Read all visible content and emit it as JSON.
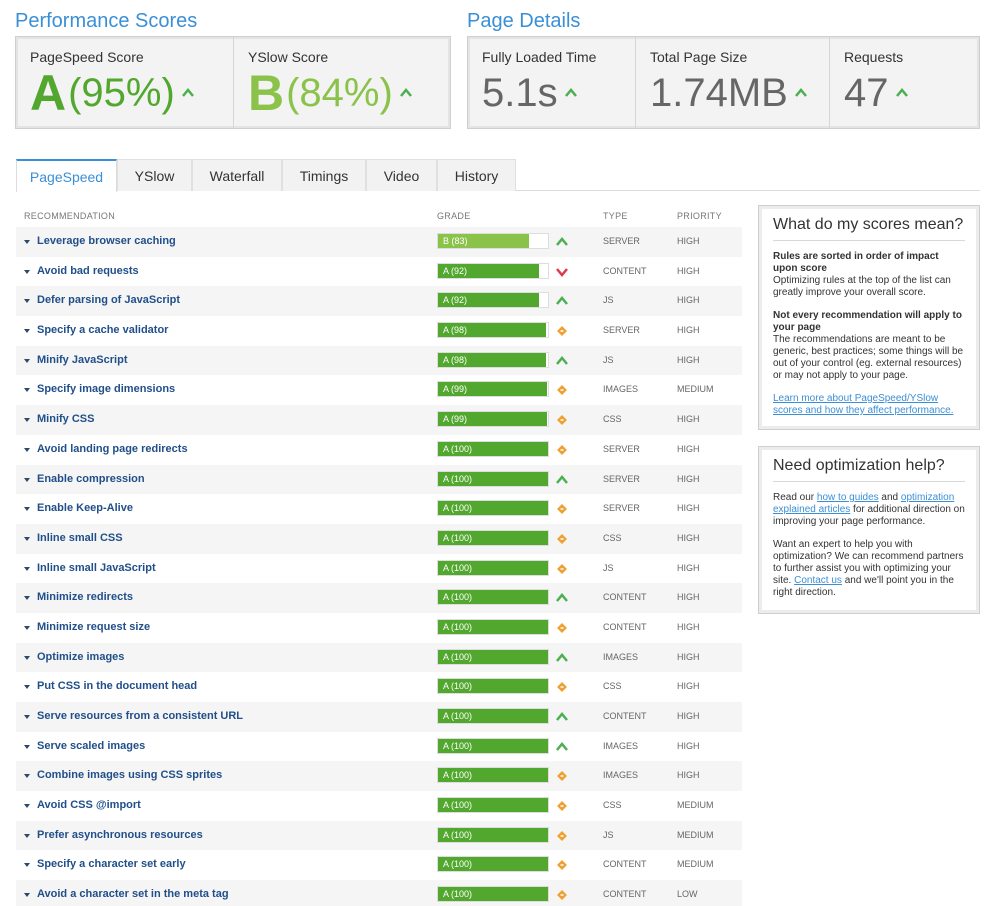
{
  "performance": {
    "title": "Performance Scores",
    "pagespeed": {
      "label": "PageSpeed Score",
      "letter": "A",
      "pct": "(95%)"
    },
    "yslow": {
      "label": "YSlow Score",
      "letter": "B",
      "pct": "(84%)"
    }
  },
  "details": {
    "title": "Page Details",
    "loaded": {
      "label": "Fully Loaded Time",
      "value": "5.1s"
    },
    "size": {
      "label": "Total Page Size",
      "value": "1.74MB"
    },
    "requests": {
      "label": "Requests",
      "value": "47"
    }
  },
  "tabs": [
    "PageSpeed",
    "YSlow",
    "Waterfall",
    "Timings",
    "Video",
    "History"
  ],
  "table": {
    "headers": {
      "recommendation": "RECOMMENDATION",
      "grade": "GRADE",
      "type": "TYPE",
      "priority": "PRIORITY"
    },
    "rows": [
      {
        "name": "Leverage browser caching",
        "grade": "B (83)",
        "score": 83,
        "trend": "up",
        "type": "SERVER",
        "priority": "HIGH"
      },
      {
        "name": "Avoid bad requests",
        "grade": "A (92)",
        "score": 92,
        "trend": "down",
        "type": "CONTENT",
        "priority": "HIGH"
      },
      {
        "name": "Defer parsing of JavaScript",
        "grade": "A (92)",
        "score": 92,
        "trend": "up",
        "type": "JS",
        "priority": "HIGH"
      },
      {
        "name": "Specify a cache validator",
        "grade": "A (98)",
        "score": 98,
        "trend": "same",
        "type": "SERVER",
        "priority": "HIGH"
      },
      {
        "name": "Minify JavaScript",
        "grade": "A (98)",
        "score": 98,
        "trend": "up",
        "type": "JS",
        "priority": "HIGH"
      },
      {
        "name": "Specify image dimensions",
        "grade": "A (99)",
        "score": 99,
        "trend": "same",
        "type": "IMAGES",
        "priority": "MEDIUM"
      },
      {
        "name": "Minify CSS",
        "grade": "A (99)",
        "score": 99,
        "trend": "same",
        "type": "CSS",
        "priority": "HIGH"
      },
      {
        "name": "Avoid landing page redirects",
        "grade": "A (100)",
        "score": 100,
        "trend": "same",
        "type": "SERVER",
        "priority": "HIGH"
      },
      {
        "name": "Enable compression",
        "grade": "A (100)",
        "score": 100,
        "trend": "up",
        "type": "SERVER",
        "priority": "HIGH"
      },
      {
        "name": "Enable Keep-Alive",
        "grade": "A (100)",
        "score": 100,
        "trend": "same",
        "type": "SERVER",
        "priority": "HIGH"
      },
      {
        "name": "Inline small CSS",
        "grade": "A (100)",
        "score": 100,
        "trend": "same",
        "type": "CSS",
        "priority": "HIGH"
      },
      {
        "name": "Inline small JavaScript",
        "grade": "A (100)",
        "score": 100,
        "trend": "same",
        "type": "JS",
        "priority": "HIGH"
      },
      {
        "name": "Minimize redirects",
        "grade": "A (100)",
        "score": 100,
        "trend": "up",
        "type": "CONTENT",
        "priority": "HIGH"
      },
      {
        "name": "Minimize request size",
        "grade": "A (100)",
        "score": 100,
        "trend": "same",
        "type": "CONTENT",
        "priority": "HIGH"
      },
      {
        "name": "Optimize images",
        "grade": "A (100)",
        "score": 100,
        "trend": "up",
        "type": "IMAGES",
        "priority": "HIGH"
      },
      {
        "name": "Put CSS in the document head",
        "grade": "A (100)",
        "score": 100,
        "trend": "same",
        "type": "CSS",
        "priority": "HIGH"
      },
      {
        "name": "Serve resources from a consistent URL",
        "grade": "A (100)",
        "score": 100,
        "trend": "up",
        "type": "CONTENT",
        "priority": "HIGH"
      },
      {
        "name": "Serve scaled images",
        "grade": "A (100)",
        "score": 100,
        "trend": "up",
        "type": "IMAGES",
        "priority": "HIGH"
      },
      {
        "name": "Combine images using CSS sprites",
        "grade": "A (100)",
        "score": 100,
        "trend": "same",
        "type": "IMAGES",
        "priority": "HIGH"
      },
      {
        "name": "Avoid CSS @import",
        "grade": "A (100)",
        "score": 100,
        "trend": "same",
        "type": "CSS",
        "priority": "MEDIUM"
      },
      {
        "name": "Prefer asynchronous resources",
        "grade": "A (100)",
        "score": 100,
        "trend": "same",
        "type": "JS",
        "priority": "MEDIUM"
      },
      {
        "name": "Specify a character set early",
        "grade": "A (100)",
        "score": 100,
        "trend": "same",
        "type": "CONTENT",
        "priority": "MEDIUM"
      },
      {
        "name": "Avoid a character set in the meta tag",
        "grade": "A (100)",
        "score": 100,
        "trend": "same",
        "type": "CONTENT",
        "priority": "LOW"
      }
    ]
  },
  "scores_box": {
    "title": "What do my scores mean?",
    "p1_bold": "Rules are sorted in order of impact upon score",
    "p1_text": "Optimizing rules at the top of the list can greatly improve your overall score.",
    "p2_bold": "Not every recommendation will apply to your page",
    "p2_text": "The recommendations are meant to be generic, best practices; some things will be out of your control (eg. external resources) or may not apply to your page.",
    "link": "Learn more about PageSpeed/YSlow scores and how they affect performance."
  },
  "help_box": {
    "title": "Need optimization help?",
    "p1_a": "Read our ",
    "link1": "how to guides",
    "p1_b": " and ",
    "link2": "optimization explained articles",
    "p1_c": " for additional direction on improving your page performance.",
    "p2_a": "Want an expert to help you with optimization? We can recommend partners to further assist you with optimizing your site. ",
    "link3": "Contact us",
    "p2_b": " and we'll point you in the right direction."
  },
  "colors": {
    "accent": "#3a8fd6",
    "grade_a": "#52a82e",
    "grade_b": "#8bc34a",
    "up": "#4caf50",
    "down": "#e0394b",
    "same": "#f0a030"
  }
}
